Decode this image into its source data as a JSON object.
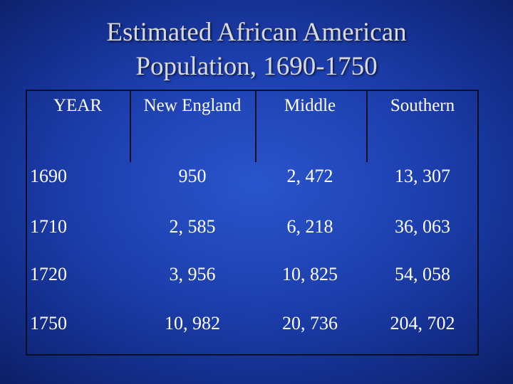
{
  "title": {
    "line1": "Estimated African American",
    "line2": "Population, 1690-1750"
  },
  "headers": [
    "YEAR",
    "New England",
    "Middle",
    "Southern"
  ],
  "rows": [
    {
      "year": "1690",
      "new_england": "950",
      "middle": "2, 472",
      "southern": "13, 307"
    },
    {
      "year": "1710",
      "new_england": "2, 585",
      "middle": "6, 218",
      "southern": "36, 063"
    },
    {
      "year": "1720",
      "new_england": "3, 956",
      "middle": "10, 825",
      "southern": "54, 058"
    },
    {
      "year": "1750",
      "new_england": "10, 982",
      "middle": "20, 736",
      "southern": "204, 702"
    }
  ],
  "colors": {
    "background": "#1d3fae",
    "title_text": "#d9d9d9",
    "body_text": "#ffffff",
    "border": "#0a0f24"
  }
}
